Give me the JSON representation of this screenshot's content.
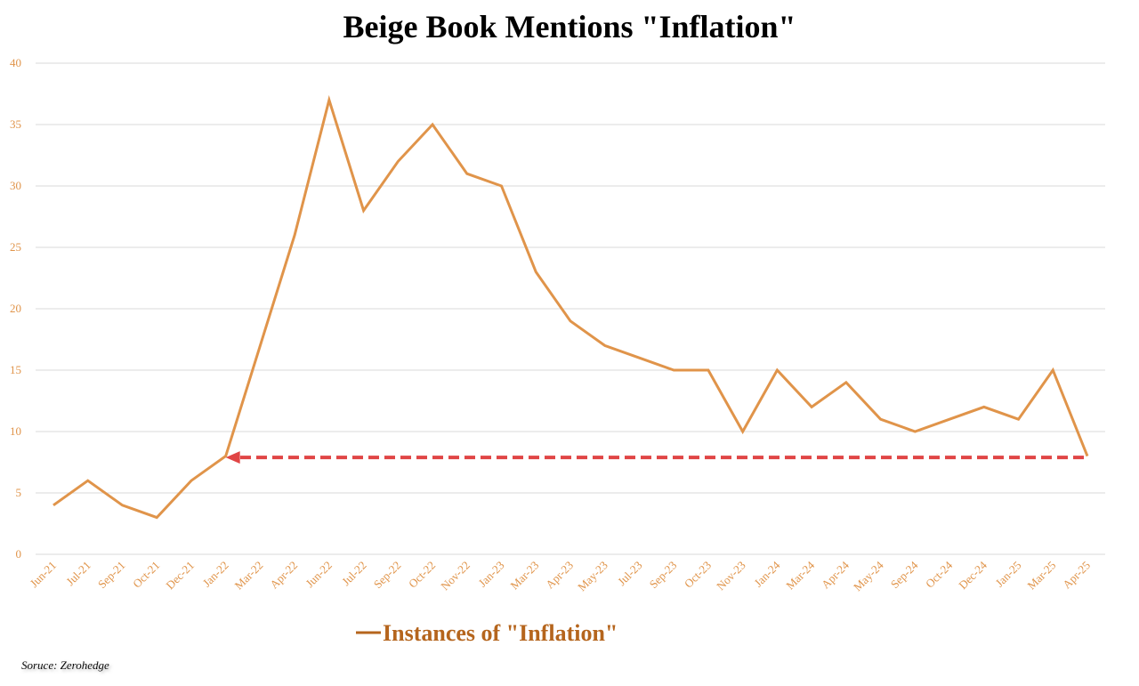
{
  "chart_data": {
    "type": "line",
    "title": "Beige Book Mentions \"Inflation\"",
    "categories": [
      "Jun-21",
      "Jul-21",
      "Sep-21",
      "Oct-21",
      "Dec-21",
      "Jan-22",
      "Mar-22",
      "Apr-22",
      "Jun-22",
      "Jul-22",
      "Sep-22",
      "Oct-22",
      "Nov-22",
      "Jan-23",
      "Mar-23",
      "Apr-23",
      "May-23",
      "Jul-23",
      "Sep-23",
      "Oct-23",
      "Nov-23",
      "Jan-24",
      "Mar-24",
      "Apr-24",
      "May-24",
      "Sep-24",
      "Oct-24",
      "Dec-24",
      "Jan-25",
      "Mar-25",
      "Apr-25"
    ],
    "series": [
      {
        "name": "Instances of \"Inflation\"",
        "values": [
          4,
          6,
          4,
          3,
          6,
          8,
          17,
          26,
          37,
          28,
          32,
          35,
          31,
          30,
          23,
          19,
          17,
          16,
          15,
          15,
          10,
          15,
          12,
          14,
          11,
          10,
          11,
          12,
          11,
          15,
          8
        ]
      }
    ],
    "yticks": [
      "0",
      "5",
      "10",
      "15",
      "20",
      "25",
      "30",
      "35",
      "40"
    ],
    "ylim": [
      0,
      40
    ],
    "grid": true,
    "legend_position": "bottom",
    "annotation": {
      "type": "dashed-arrow",
      "value": 8,
      "from_category": "Apr-25",
      "to_category": "Jan-22",
      "color": "#e04545"
    },
    "colors": {
      "line": "#e0944a",
      "tick": "#e0944a",
      "legend": "#b5651d",
      "grid": "#d9d9d9"
    }
  },
  "source": "Soruce: Zerohedge"
}
